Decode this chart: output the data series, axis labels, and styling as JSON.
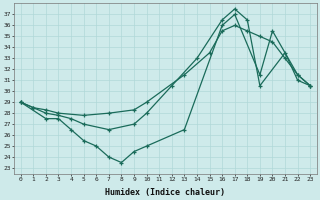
{
  "title": "",
  "xlabel": "Humidex (Indice chaleur)",
  "bg_color": "#ceeaea",
  "line_color": "#1a6b5a",
  "grid_color": "#b0d8d8",
  "ylim": [
    22.5,
    38.0
  ],
  "xlim": [
    -0.5,
    23.5
  ],
  "yticks": [
    23,
    24,
    25,
    26,
    27,
    28,
    29,
    30,
    31,
    32,
    33,
    34,
    35,
    36,
    37
  ],
  "xticks": [
    0,
    1,
    2,
    3,
    4,
    5,
    6,
    7,
    8,
    9,
    10,
    11,
    12,
    13,
    14,
    15,
    16,
    17,
    18,
    19,
    20,
    21,
    22,
    23
  ],
  "line1_x": [
    0,
    1,
    2,
    3,
    5,
    7,
    9,
    10,
    13,
    15,
    16,
    17,
    18,
    19,
    20,
    21,
    22,
    23
  ],
  "line1_y": [
    29.0,
    28.5,
    28.3,
    28.0,
    27.8,
    28.0,
    28.3,
    29.0,
    31.5,
    33.5,
    35.5,
    36.0,
    35.5,
    35.0,
    34.5,
    33.0,
    31.5,
    30.5
  ],
  "line2_x": [
    0,
    1,
    2,
    3,
    4,
    5,
    7,
    9,
    10,
    12,
    14,
    16,
    17,
    18,
    19,
    21,
    22,
    23
  ],
  "line2_y": [
    29.0,
    28.5,
    28.0,
    27.8,
    27.5,
    27.0,
    26.5,
    27.0,
    28.0,
    30.5,
    33.0,
    36.5,
    37.5,
    36.5,
    30.5,
    33.5,
    31.0,
    30.5
  ],
  "line3_x": [
    0,
    2,
    3,
    4,
    5,
    6,
    7,
    8,
    9,
    10,
    13,
    16,
    17,
    19,
    20,
    22,
    23
  ],
  "line3_y": [
    29.0,
    27.5,
    27.5,
    26.5,
    25.5,
    25.0,
    24.0,
    23.5,
    24.5,
    25.0,
    26.5,
    36.0,
    37.0,
    31.5,
    35.5,
    31.5,
    30.5
  ]
}
